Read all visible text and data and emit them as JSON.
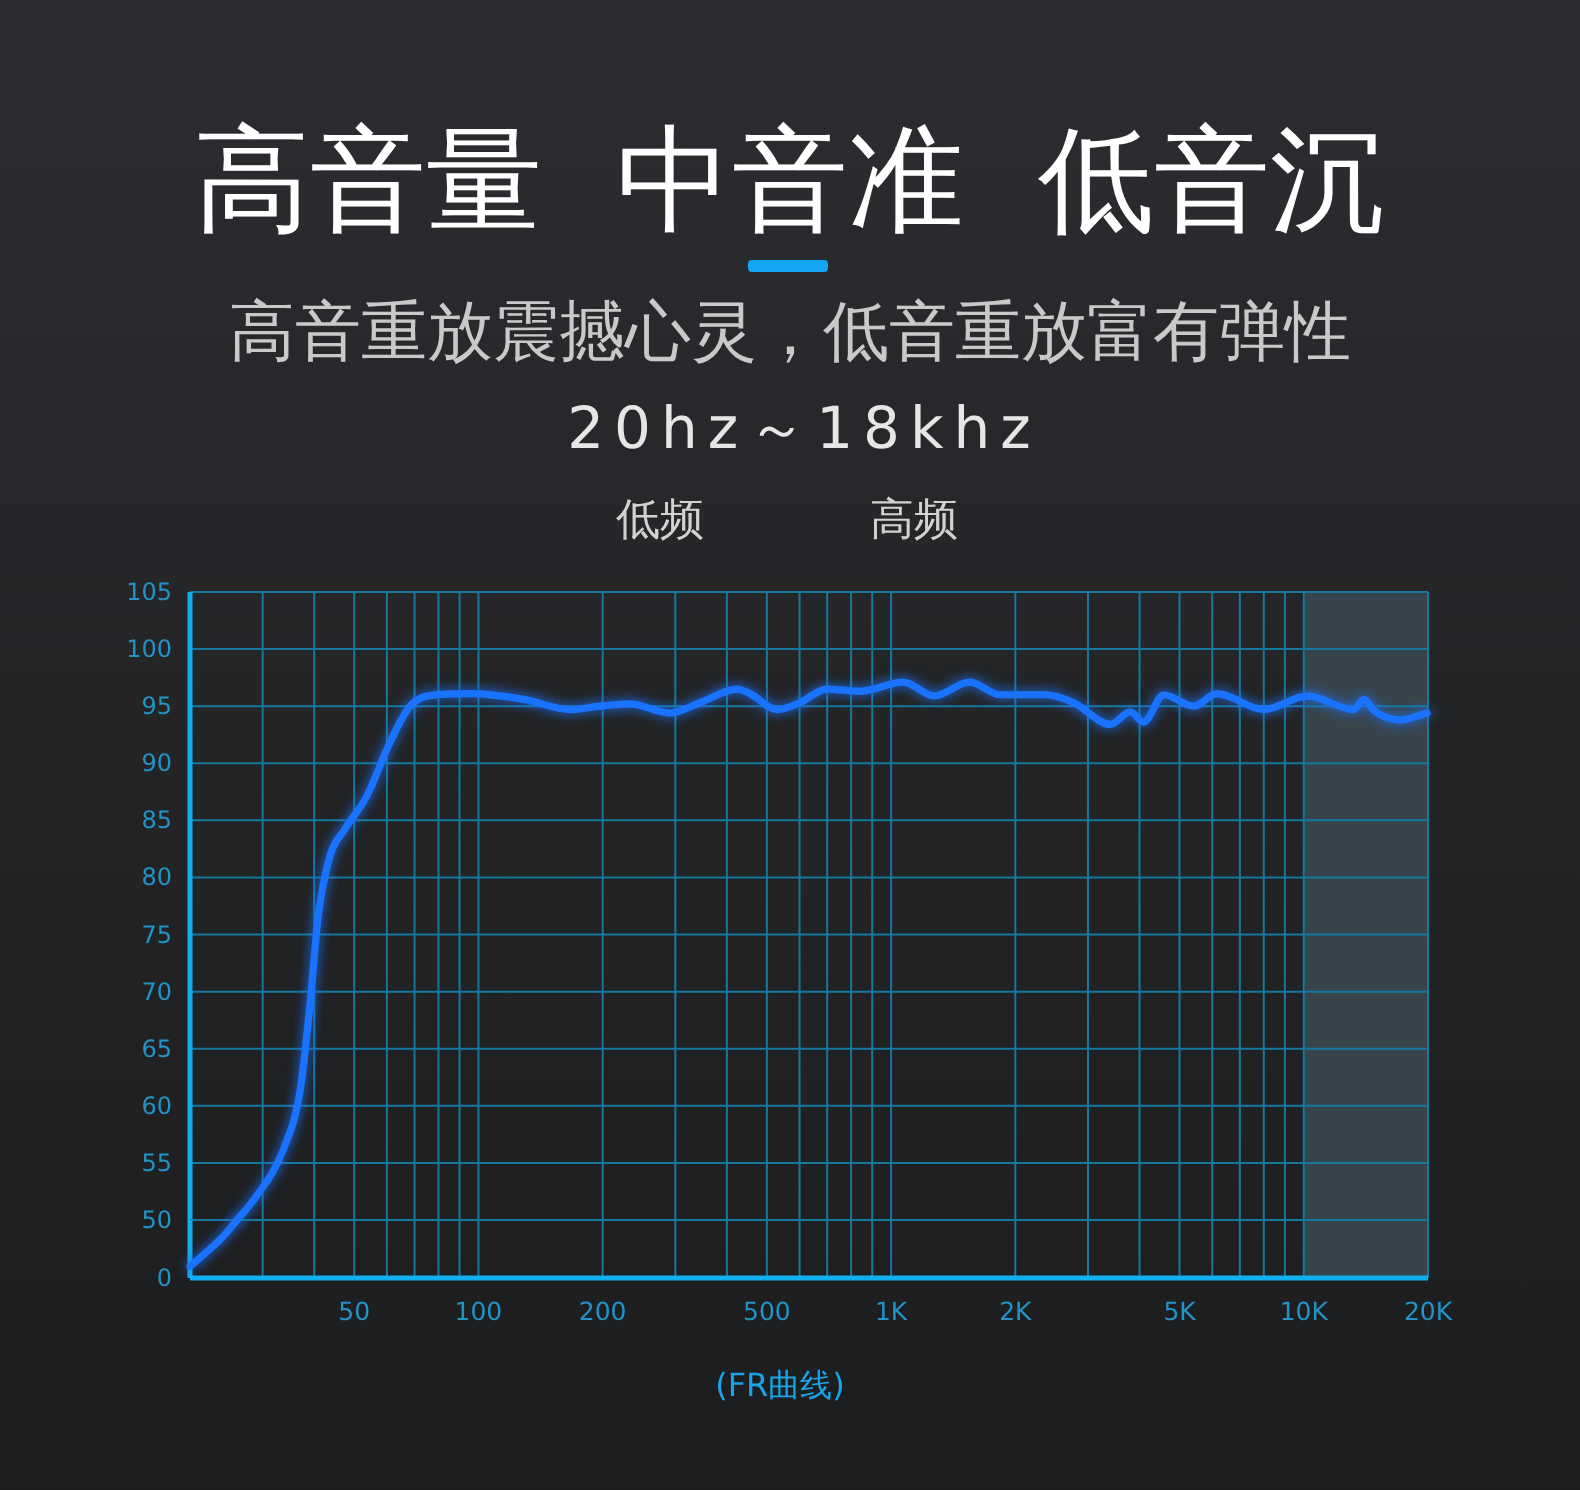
{
  "chart_data": [
    {
      "type": "line",
      "title": "高音量  中音准  低音沉",
      "subtitle": "高音重放震撼心灵，低音重放富有弹性",
      "annotations": [
        "20hz～18khz",
        "低频",
        "高频",
        "(FR曲线)"
      ],
      "log": "x",
      "xlim": [
        20,
        20000
      ],
      "xticks": [
        30,
        40,
        50,
        60,
        70,
        80,
        90,
        100,
        200,
        300,
        400,
        500,
        600,
        700,
        800,
        900,
        1000,
        2000,
        3000,
        4000,
        5000,
        6000,
        7000,
        8000,
        9000,
        10000,
        20000
      ],
      "ylim": [
        50,
        105
      ],
      "yticks": [
        55,
        60,
        65,
        70,
        75,
        80,
        85,
        90,
        95,
        100,
        105
      ],
      "tick_labels": "y",
      "grid": true,
      "color": "#1a73ff",
      "x": [
        26,
        29,
        33.7,
        37,
        39.1,
        40.9,
        43.7,
        47.4,
        53.6,
        61,
        68.3,
        79.2,
        95.4,
        129,
        167,
        197,
        233,
        291,
        344,
        423,
        455,
        529,
        601,
        698,
        841,
        1070,
        1270,
        1550,
        1840,
        2210,
        2380,
        2770,
        3400,
        3800,
        4090,
        4580,
        5410,
        6160,
        8000,
        10200,
        13200,
        14000,
        14800,
        17100,
        19900
      ],
      "values": [
        50,
        52.1,
        56.2,
        61.4,
        69,
        76.6,
        81.9,
        84.2,
        87.1,
        91.8,
        95,
        96,
        96.1,
        95.6,
        94.7,
        95,
        95.2,
        94.4,
        95.3,
        96.5,
        96.1,
        94.7,
        95.3,
        96.5,
        96.3,
        97.1,
        95.9,
        97.1,
        96,
        96,
        96,
        95.3,
        93.4,
        94.5,
        93.6,
        96,
        95,
        96.1,
        94.7,
        95.9,
        94.7,
        95.6,
        94.6,
        93.8,
        94.4
      ],
      "bands": [
        {
          "axis": "x",
          "from": 10000,
          "to": 20000,
          "color": "#37444b"
        }
      ]
    },
    {
      "type": "line",
      "log": "x",
      "xlim": [
        20,
        20000
      ],
      "xticks": [
        {
          "value": 30,
          "label": null
        },
        {
          "value": 40,
          "label": null
        },
        50,
        {
          "value": 60,
          "label": null
        },
        {
          "value": 70,
          "label": null
        },
        {
          "value": 80,
          "label": null
        },
        {
          "value": 90,
          "label": null
        },
        100,
        200,
        {
          "value": 300,
          "label": null
        },
        {
          "value": 400,
          "label": null
        },
        500,
        {
          "value": 600,
          "label": null
        },
        {
          "value": 700,
          "label": null
        },
        {
          "value": 800,
          "label": null
        },
        {
          "value": 900,
          "label": null
        },
        {
          "value": 1000,
          "label": "1K"
        },
        {
          "value": 2000,
          "label": "2K"
        },
        {
          "value": 3000,
          "label": null
        },
        {
          "value": 4000,
          "label": null
        },
        {
          "value": 5000,
          "label": "5K"
        },
        {
          "value": 6000,
          "label": null
        },
        {
          "value": 7000,
          "label": null
        },
        {
          "value": 8000,
          "label": null
        },
        {
          "value": 9000,
          "label": null
        },
        {
          "value": 10000,
          "label": "10K"
        },
        {
          "value": 20000,
          "label": "20K"
        }
      ],
      "ylim": [
        0,
        50
      ],
      "yticks": [
        0,
        50
      ],
      "grid": true,
      "color": "#1a73ff",
      "x": [
        20,
        24.1,
        26
      ],
      "values": [
        10,
        36,
        50
      ],
      "bands": [
        {
          "axis": "x",
          "from": 10000,
          "to": 20000,
          "color": "#37444b"
        }
      ]
    }
  ]
}
